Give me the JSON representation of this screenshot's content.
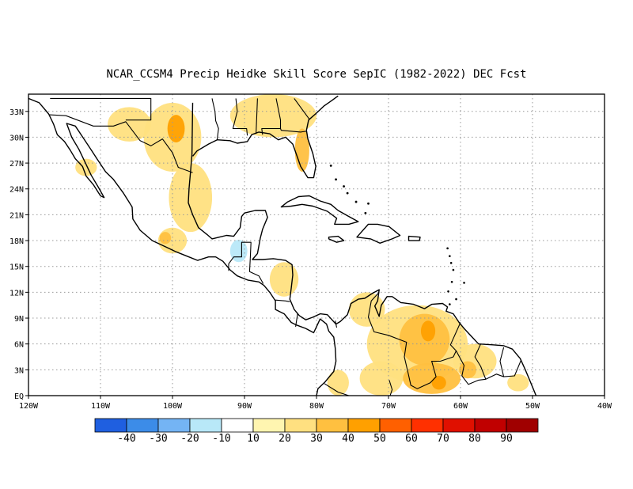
{
  "title": "NCAR_CCSM4 Precip Heidke Skill Score SepIC (1982-2022) DEC Fcst",
  "map": {
    "lon_range": [
      -120,
      -40
    ],
    "lat_range": [
      0,
      35
    ],
    "x_ticks": [
      {
        "lon": -120,
        "label": "120W"
      },
      {
        "lon": -110,
        "label": "110W"
      },
      {
        "lon": -100,
        "label": "100W"
      },
      {
        "lon": -90,
        "label": "90W"
      },
      {
        "lon": -80,
        "label": "80W"
      },
      {
        "lon": -70,
        "label": "70W"
      },
      {
        "lon": -60,
        "label": "60W"
      },
      {
        "lon": -50,
        "label": "50W"
      },
      {
        "lon": -40,
        "label": "40W"
      }
    ],
    "y_ticks": [
      {
        "lat": 0,
        "label": "EQ"
      },
      {
        "lat": 3,
        "label": "3N"
      },
      {
        "lat": 6,
        "label": "6N"
      },
      {
        "lat": 9,
        "label": "9N"
      },
      {
        "lat": 12,
        "label": "12N"
      },
      {
        "lat": 15,
        "label": "15N"
      },
      {
        "lat": 18,
        "label": "18N"
      },
      {
        "lat": 21,
        "label": "21N"
      },
      {
        "lat": 24,
        "label": "24N"
      },
      {
        "lat": 27,
        "label": "27N"
      },
      {
        "lat": 30,
        "label": "30N"
      },
      {
        "lat": 33,
        "label": "33N"
      }
    ],
    "grid": "dotted"
  },
  "colorbar": {
    "colors": [
      "#1f5fe0",
      "#3c8ce8",
      "#74b4f4",
      "#b8e8f8",
      "#ffffff",
      "#fff5b0",
      "#ffe080",
      "#ffc040",
      "#ffa000",
      "#ff6000",
      "#ff3000",
      "#e01000",
      "#c00000",
      "#a00000"
    ],
    "labels": [
      "-40",
      "-30",
      "-20",
      "-10",
      "10",
      "20",
      "30",
      "40",
      "50",
      "60",
      "70",
      "80",
      "90"
    ]
  },
  "shading": [
    {
      "name": "us-southwest",
      "lon": -106,
      "lat": 31.5,
      "rx": 3,
      "ry": 2,
      "level": 20
    },
    {
      "name": "us-texas",
      "lon": -100,
      "lat": 30,
      "rx": 4,
      "ry": 4,
      "level": 20
    },
    {
      "name": "texas-core",
      "lon": -99.5,
      "lat": 31,
      "rx": 1.2,
      "ry": 1.6,
      "level": 40
    },
    {
      "name": "us-southeast",
      "lon": -86,
      "lat": 32.5,
      "rx": 6,
      "ry": 2.5,
      "level": 20
    },
    {
      "name": "florida",
      "lon": -82,
      "lat": 28.5,
      "rx": 1,
      "ry": 2.5,
      "level": 30
    },
    {
      "name": "baja",
      "lon": -112,
      "lat": 26.5,
      "rx": 1.5,
      "ry": 1,
      "level": 20
    },
    {
      "name": "mexico-east",
      "lon": -97.5,
      "lat": 23,
      "rx": 3,
      "ry": 4,
      "level": 20
    },
    {
      "name": "mexico-south",
      "lon": -100,
      "lat": 18,
      "rx": 2,
      "ry": 1.5,
      "level": 20
    },
    {
      "name": "mexico-south-core",
      "lon": -101,
      "lat": 18.3,
      "rx": 0.8,
      "ry": 0.7,
      "level": 30
    },
    {
      "name": "yucatan-blue",
      "lon": -88.5,
      "lat": 20.5,
      "rx": 1,
      "ry": 1,
      "level": -10
    },
    {
      "name": "guatemala-blue",
      "lon": -90.8,
      "lat": 16.8,
      "rx": 1.2,
      "ry": 1.3,
      "level": -20
    },
    {
      "name": "nicaragua",
      "lon": -84.5,
      "lat": 13.5,
      "rx": 2,
      "ry": 2,
      "level": 20
    },
    {
      "name": "colombia-north",
      "lon": -73,
      "lat": 10,
      "rx": 2.5,
      "ry": 2,
      "level": 20
    },
    {
      "name": "venezuela",
      "lon": -66,
      "lat": 6,
      "rx": 7,
      "ry": 4.5,
      "level": 20
    },
    {
      "name": "venezuela-core",
      "lon": -65,
      "lat": 6.5,
      "rx": 3.5,
      "ry": 3,
      "level": 30
    },
    {
      "name": "venezuela-hot",
      "lon": -64.5,
      "lat": 7.5,
      "rx": 1,
      "ry": 1.2,
      "level": 40
    },
    {
      "name": "guyana",
      "lon": -58,
      "lat": 4,
      "rx": 3,
      "ry": 2,
      "level": 20
    },
    {
      "name": "guyana-core",
      "lon": -59,
      "lat": 3,
      "rx": 1.2,
      "ry": 1,
      "level": 30
    },
    {
      "name": "amazon-north",
      "lon": -64,
      "lat": 2,
      "rx": 4,
      "ry": 1.8,
      "level": 30
    },
    {
      "name": "amazon-hot",
      "lon": -63,
      "lat": 1.5,
      "rx": 1,
      "ry": 0.8,
      "level": 40
    },
    {
      "name": "colombia-south",
      "lon": -71,
      "lat": 2,
      "rx": 3,
      "ry": 2,
      "level": 20
    },
    {
      "name": "ecuador",
      "lon": -77,
      "lat": 1.5,
      "rx": 1.5,
      "ry": 1.5,
      "level": 20
    },
    {
      "name": "brazil-east",
      "lon": -52,
      "lat": 1.5,
      "rx": 1.5,
      "ry": 1,
      "level": 20
    }
  ]
}
